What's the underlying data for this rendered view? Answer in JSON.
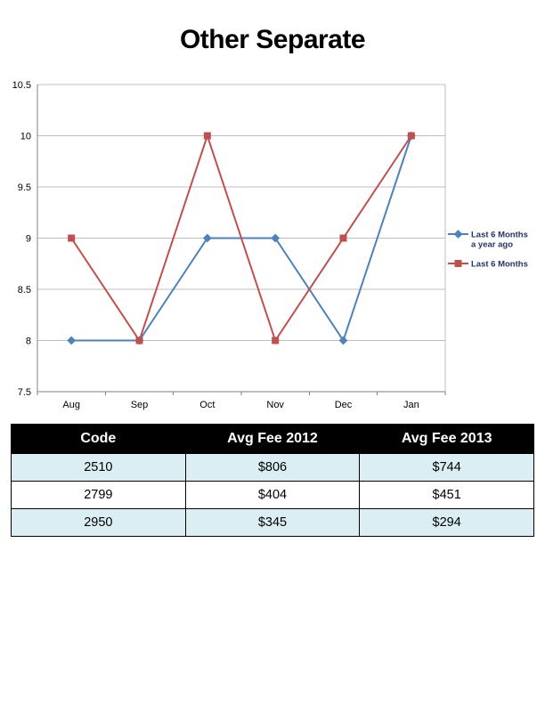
{
  "page": {
    "title": "Other Separate"
  },
  "chart_data": {
    "type": "line",
    "title": "",
    "categories": [
      "Aug",
      "Sep",
      "Oct",
      "Nov",
      "Dec",
      "Jan"
    ],
    "series": [
      {
        "name": "Last 6 Months\na year ago",
        "values": [
          8,
          8,
          9,
          9,
          8,
          10
        ],
        "color": "#4F81BD",
        "marker": "diamond"
      },
      {
        "name": "Last 6 Months",
        "values": [
          9,
          8,
          10,
          8,
          9,
          10
        ],
        "color": "#C0504D",
        "marker": "square"
      }
    ],
    "ylim": [
      7.5,
      10.5
    ],
    "ytick_step": 0.5,
    "ytick_labels": [
      "7.5",
      "8",
      "8.5",
      "9",
      "9.5",
      "10",
      "10.5"
    ],
    "grid": true,
    "legend_position": "right",
    "gridline_color": "#BFBFBF",
    "axis_color": "#808080",
    "legend_text_color": "#1F3864"
  },
  "table": {
    "headers": [
      "Code",
      "Avg Fee 2012",
      "Avg Fee 2013"
    ],
    "rows": [
      [
        "2510",
        "$806",
        "$744"
      ],
      [
        "2799",
        "$404",
        "$451"
      ],
      [
        "2950",
        "$345",
        "$294"
      ]
    ],
    "header_bg": "#000000",
    "header_fg": "#FFFFFF",
    "row_alt_bg": "#DAEEF3"
  }
}
